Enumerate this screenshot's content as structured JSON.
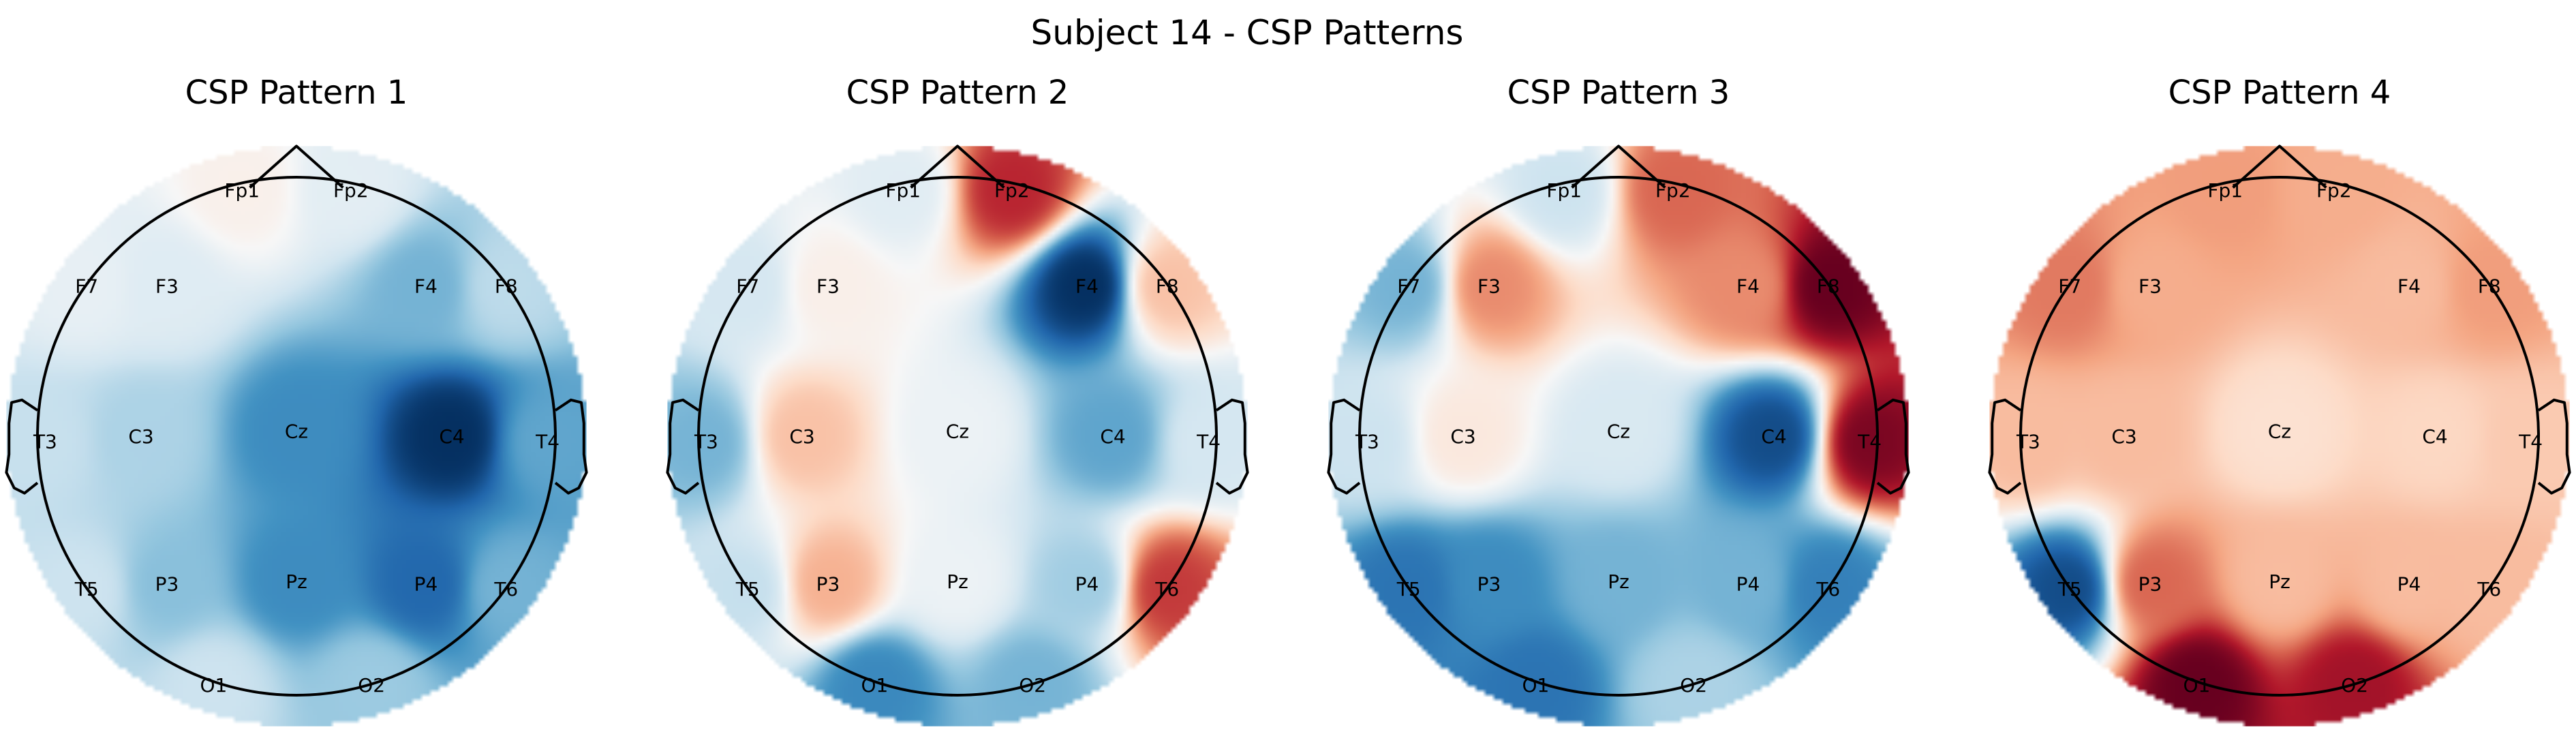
{
  "figure": {
    "title": "Subject 14 - CSP Patterns"
  },
  "chart_data": [
    {
      "type": "heatmap",
      "subtype": "eeg-topomap",
      "title": "CSP Pattern 1",
      "colormap": "RdBu_r",
      "electrodes": [
        "Fp1",
        "Fp2",
        "F7",
        "F3",
        "F4",
        "F8",
        "T3",
        "C3",
        "Cz",
        "C4",
        "T4",
        "T5",
        "P3",
        "Pz",
        "P4",
        "T6",
        "O1",
        "O2"
      ],
      "values": [
        0.05,
        -0.1,
        -0.08,
        -0.12,
        -0.45,
        -0.25,
        -0.22,
        -0.3,
        -0.6,
        -0.95,
        -0.5,
        -0.2,
        -0.4,
        -0.6,
        -0.75,
        -0.45,
        -0.2,
        -0.35
      ]
    },
    {
      "type": "heatmap",
      "subtype": "eeg-topomap",
      "title": "CSP Pattern 2",
      "colormap": "RdBu_r",
      "electrodes": [
        "Fp1",
        "Fp2",
        "F7",
        "F3",
        "F4",
        "F8",
        "T3",
        "C3",
        "Cz",
        "C4",
        "T4",
        "T5",
        "P3",
        "Pz",
        "P4",
        "T6",
        "O1",
        "O2"
      ],
      "values": [
        -0.1,
        0.65,
        -0.15,
        0.05,
        -0.85,
        0.25,
        -0.4,
        0.25,
        -0.05,
        -0.45,
        -0.15,
        -0.2,
        0.3,
        -0.05,
        -0.3,
        0.6,
        -0.55,
        -0.4
      ]
    },
    {
      "type": "heatmap",
      "subtype": "eeg-topomap",
      "title": "CSP Pattern 3",
      "colormap": "RdBu_r",
      "electrodes": [
        "Fp1",
        "Fp2",
        "F7",
        "F3",
        "F4",
        "F8",
        "T3",
        "C3",
        "Cz",
        "C4",
        "T4",
        "T5",
        "P3",
        "Pz",
        "P4",
        "T6",
        "O1",
        "O2"
      ],
      "values": [
        -0.2,
        0.55,
        -0.45,
        0.45,
        0.45,
        0.95,
        -0.2,
        0.1,
        -0.15,
        -0.85,
        0.9,
        -0.7,
        -0.6,
        -0.45,
        -0.45,
        -0.65,
        -0.7,
        -0.3
      ]
    },
    {
      "type": "heatmap",
      "subtype": "eeg-topomap",
      "title": "CSP Pattern 4",
      "colormap": "RdBu_r",
      "electrodes": [
        "Fp1",
        "Fp2",
        "F7",
        "F3",
        "F4",
        "F8",
        "T3",
        "C3",
        "Cz",
        "C4",
        "T4",
        "T5",
        "P3",
        "Pz",
        "P4",
        "T6",
        "O1",
        "O2"
      ],
      "values": [
        0.4,
        0.35,
        0.5,
        0.35,
        0.3,
        0.4,
        0.3,
        0.3,
        0.15,
        0.2,
        0.25,
        -0.85,
        0.55,
        0.3,
        0.3,
        0.3,
        0.95,
        0.8
      ]
    }
  ]
}
